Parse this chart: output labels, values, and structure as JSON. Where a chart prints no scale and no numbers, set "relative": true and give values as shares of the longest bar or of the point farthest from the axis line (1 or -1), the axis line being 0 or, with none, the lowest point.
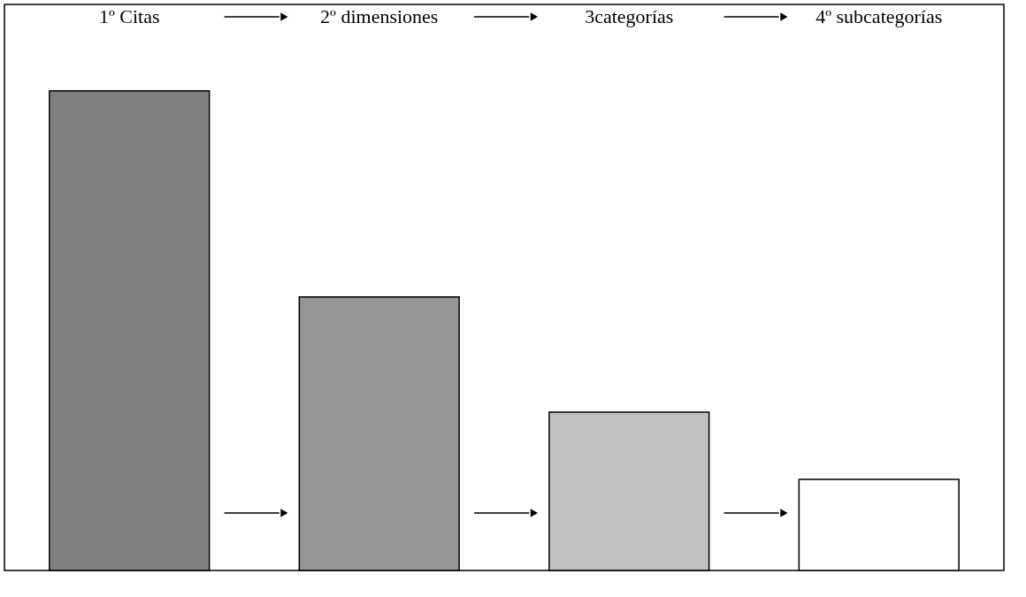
{
  "chart_data": {
    "type": "bar",
    "relative": true,
    "categories": [
      "1º Citas",
      "2º dimensiones",
      "3categorías",
      "4º subcategorías"
    ],
    "values": [
      1,
      0.57,
      0.33,
      0.19
    ],
    "colors": [
      "#808080",
      "#969696",
      "#c0c0c0",
      "#ffffff"
    ]
  }
}
